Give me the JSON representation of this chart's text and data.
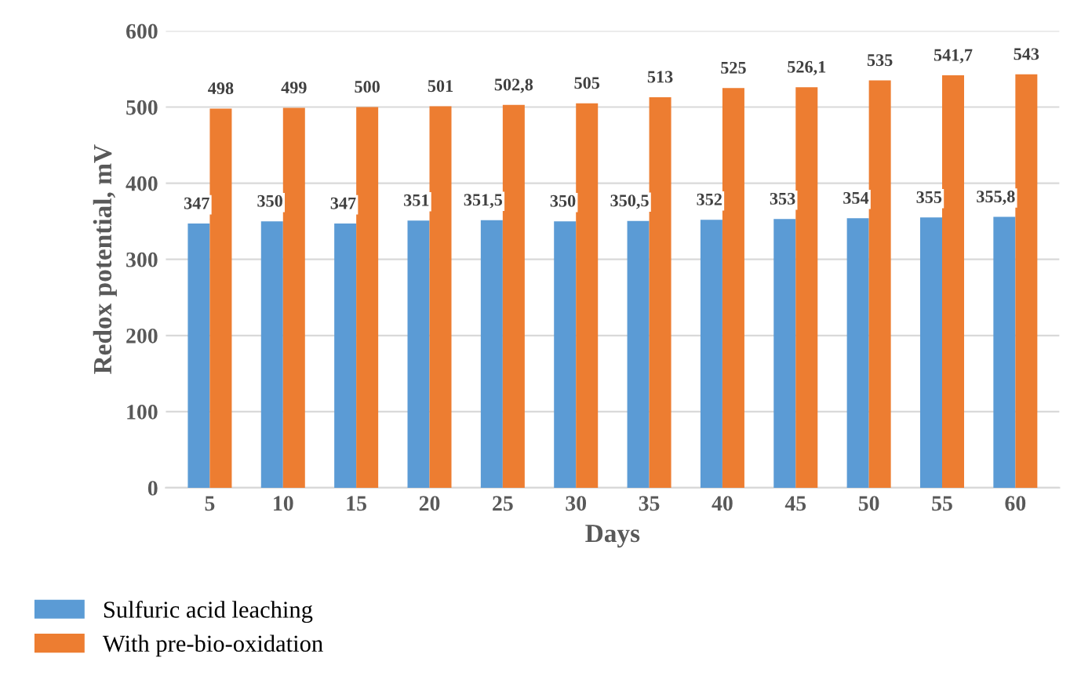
{
  "chart_data": {
    "type": "bar",
    "xlabel": "Days",
    "ylabel": "Redox potential, mV",
    "categories": [
      "5",
      "10",
      "15",
      "20",
      "25",
      "30",
      "35",
      "40",
      "45",
      "50",
      "55",
      "60"
    ],
    "series": [
      {
        "name": "Sulfuric acid leaching",
        "color": "#5b9bd5",
        "values": [
          347,
          350,
          347,
          351,
          351.5,
          350,
          350.5,
          352,
          353,
          354,
          355,
          355.8
        ],
        "value_labels": [
          "347",
          "350",
          "347",
          "351",
          "351,5",
          "350",
          "350,5",
          "352",
          "353",
          "354",
          "355",
          "355,8"
        ]
      },
      {
        "name": "With pre-bio-oxidation",
        "color": "#ed7d31",
        "values": [
          498,
          499,
          500,
          501,
          502.8,
          505,
          513,
          525,
          526.1,
          535,
          541.7,
          543
        ],
        "value_labels": [
          "498",
          "499",
          "500",
          "501",
          "502,8",
          "505",
          "513",
          "525",
          "526,1",
          "535",
          "541,7",
          "543"
        ]
      }
    ],
    "ylim": [
      0,
      600
    ],
    "yticks": [
      0,
      100,
      200,
      300,
      400,
      500,
      600
    ],
    "grid": "y",
    "legend": "bottom left"
  }
}
